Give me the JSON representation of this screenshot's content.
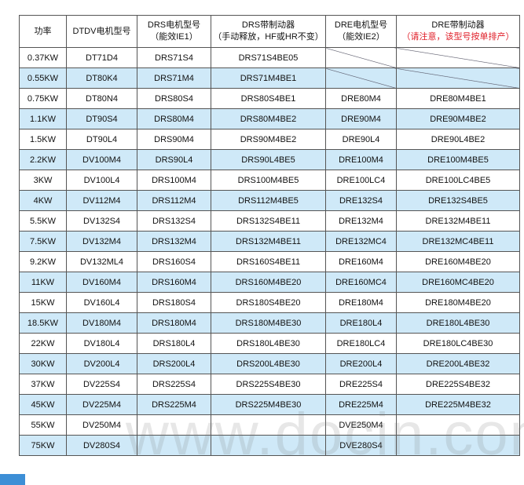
{
  "headers": [
    {
      "line1": "功率",
      "line2": ""
    },
    {
      "line1": "DTDV电机型号",
      "line2": ""
    },
    {
      "line1": "DRS电机型号",
      "line2": "（能效IE1）"
    },
    {
      "line1": "DRS带制动器",
      "line2": "（手动释放，HF或HR不变）"
    },
    {
      "line1": "DRE电机型号",
      "line2": "（能效IE2）"
    },
    {
      "line1": "DRE带制动器",
      "line2": "（请注意，该型号按单排产）"
    }
  ],
  "accent_color": "#cfe9f8",
  "note_color": "#e0202a",
  "rows": [
    [
      "0.37KW",
      "DT71D4",
      "DRS71S4",
      "DRS71S4BE05",
      "",
      ""
    ],
    [
      "0.55KW",
      "DT80K4",
      "DRS71M4",
      "DRS71M4BE1",
      "",
      ""
    ],
    [
      "0.75KW",
      "DT80N4",
      "DRS80S4",
      "DRS80S4BE1",
      "DRE80M4",
      "DRE80M4BE1"
    ],
    [
      "1.1KW",
      "DT90S4",
      "DRS80M4",
      "DRS80M4BE2",
      "DRE90M4",
      "DRE90M4BE2"
    ],
    [
      "1.5KW",
      "DT90L4",
      "DRS90M4",
      "DRS90M4BE2",
      "DRE90L4",
      "DRE90L4BE2"
    ],
    [
      "2.2KW",
      "DV100M4",
      "DRS90L4",
      "DRS90L4BE5",
      "DRE100M4",
      "DRE100M4BE5"
    ],
    [
      "3KW",
      "DV100L4",
      "DRS100M4",
      "DRS100M4BE5",
      "DRE100LC4",
      "DRE100LC4BE5"
    ],
    [
      "4KW",
      "DV112M4",
      "DRS112M4",
      "DRS112M4BE5",
      "DRE132S4",
      "DRE132S4BE5"
    ],
    [
      "5.5KW",
      "DV132S4",
      "DRS132S4",
      "DRS132S4BE11",
      "DRE132M4",
      "DRE132M4BE11"
    ],
    [
      "7.5KW",
      "DV132M4",
      "DRS132M4",
      "DRS132M4BE11",
      "DRE132MC4",
      "DRE132MC4BE11"
    ],
    [
      "9.2KW",
      "DV132ML4",
      "DRS160S4",
      "DRS160S4BE11",
      "DRE160M4",
      "DRE160M4BE20"
    ],
    [
      "11KW",
      "DV160M4",
      "DRS160M4",
      "DRS160M4BE20",
      "DRE160MC4",
      "DRE160MC4BE20"
    ],
    [
      "15KW",
      "DV160L4",
      "DRS180S4",
      "DRS180S4BE20",
      "DRE180M4",
      "DRE180M4BE20"
    ],
    [
      "18.5KW",
      "DV180M4",
      "DRS180M4",
      "DRS180M4BE30",
      "DRE180L4",
      "DRE180L4BE30"
    ],
    [
      "22KW",
      "DV180L4",
      "DRS180L4",
      "DRS180L4BE30",
      "DRE180LC4",
      "DRE180LC4BE30"
    ],
    [
      "30KW",
      "DV200L4",
      "DRS200L4",
      "DRS200L4BE30",
      "DRE200L4",
      "DRE200L4BE32"
    ],
    [
      "37KW",
      "DV225S4",
      "DRS225S4",
      "DRS225S4BE30",
      "DRE225S4",
      "DRE225S4BE32"
    ],
    [
      "45KW",
      "DV225M4",
      "DRS225M4",
      "DRS225M4BE30",
      "DRE225M4",
      "DRE225M4BE32"
    ],
    [
      "55KW",
      "DV250M4",
      "",
      "",
      "DVE250M4",
      ""
    ],
    [
      "75KW",
      "DV280S4",
      "",
      "",
      "DVE280S4",
      ""
    ]
  ],
  "watermark": "www.docin.com"
}
